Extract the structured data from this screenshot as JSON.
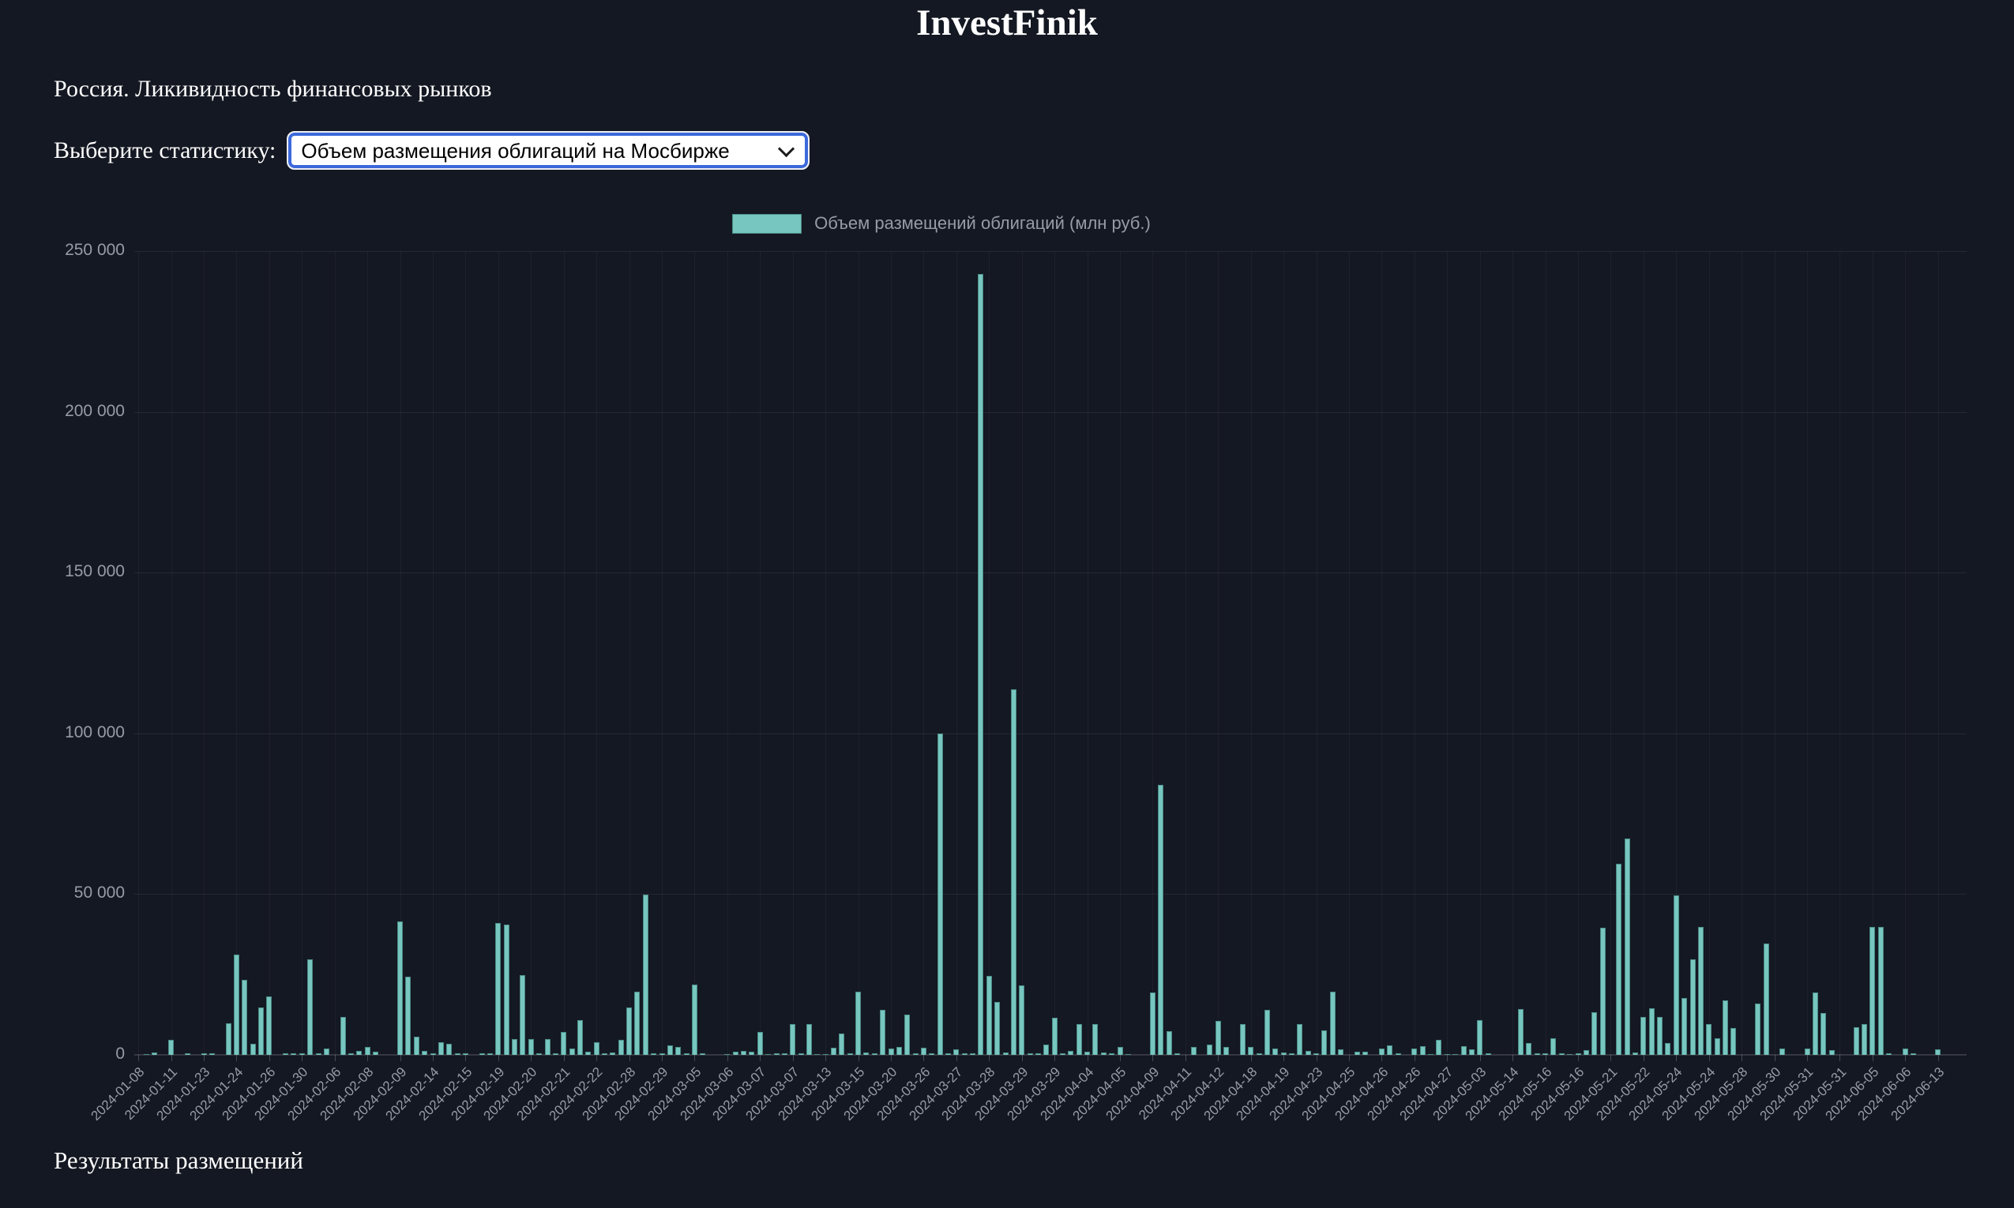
{
  "page": {
    "title": "InvestFinik",
    "subtitle": "Россия. Ликивидность финансовых рынков",
    "select_label": "Выберите статистику:",
    "select_value": "Объем размещения облигаций на Мосбирже",
    "footer_heading": "Результаты размещений"
  },
  "colors": {
    "background": "#141822",
    "bar_fill": "#77c6c0",
    "bar_border": "#4a8a85",
    "select_focus_blue": "#3c69da",
    "muted_text": "#969ca6",
    "white_text": "#ffffff"
  },
  "chart_data": {
    "type": "bar",
    "title": "",
    "legend": [
      {
        "label": "Объем размещений облигаций (млн руб.)",
        "color": "#77c6c0"
      }
    ],
    "legend_position": "top",
    "grid": true,
    "ylabel": "",
    "xlabel": "",
    "ylim": [
      0,
      250000
    ],
    "y_ticks": [
      "0",
      "50 000",
      "100 000",
      "150 000",
      "200 000",
      "250 000"
    ],
    "x_label_every": 4,
    "x_labels": [
      "2024-01-08",
      "2024-01-11",
      "2024-01-23",
      "2024-01-24",
      "2024-01-26",
      "2024-01-30",
      "2024-02-06",
      "2024-02-08",
      "2024-02-09",
      "2024-02-14",
      "2024-02-15",
      "2024-02-19",
      "2024-02-20",
      "2024-02-21",
      "2024-02-22",
      "2024-02-28",
      "2024-02-29",
      "2024-03-05",
      "2024-03-06",
      "2024-03-07",
      "2024-03-07",
      "2024-03-13",
      "2024-03-15",
      "2024-03-20",
      "2024-03-26",
      "2024-03-27",
      "2024-03-28",
      "2024-03-29",
      "2024-03-29",
      "2024-04-04",
      "2024-04-05",
      "2024-04-09",
      "2024-04-11",
      "2024-04-12",
      "2024-04-18",
      "2024-04-19",
      "2024-04-23",
      "2024-04-25",
      "2024-04-26",
      "2024-04-26",
      "2024-04-27",
      "2024-05-03",
      "2024-05-14",
      "2024-05-16",
      "2024-05-16",
      "2024-05-21",
      "2024-05-22",
      "2024-05-24",
      "2024-05-24",
      "2024-05-28",
      "2024-05-30",
      "2024-05-31",
      "2024-05-31",
      "2024-06-05",
      "2024-06-06",
      "2024-06-13"
    ],
    "values": [
      0,
      300,
      800,
      0,
      4700,
      0,
      400,
      0,
      400,
      400,
      0,
      9800,
      31200,
      23300,
      3400,
      14700,
      18200,
      0,
      400,
      400,
      400,
      29600,
      500,
      2000,
      0,
      11900,
      400,
      1200,
      2400,
      900,
      0,
      0,
      41600,
      24200,
      5700,
      1300,
      400,
      4000,
      3500,
      400,
      400,
      0,
      400,
      400,
      41000,
      40500,
      4900,
      24800,
      4900,
      400,
      4900,
      400,
      7100,
      2000,
      10800,
      1000,
      3900,
      500,
      800,
      4700,
      14700,
      19700,
      49800,
      500,
      500,
      2900,
      2500,
      500,
      21900,
      400,
      0,
      0,
      300,
      1000,
      1200,
      1000,
      7200,
      300,
      500,
      500,
      9600,
      400,
      9600,
      300,
      300,
      2100,
      6700,
      400,
      19600,
      800,
      400,
      14000,
      2000,
      2500,
      12500,
      400,
      2200,
      400,
      100000,
      400,
      1700,
      400,
      500,
      243000,
      24600,
      16500,
      700,
      113600,
      21700,
      400,
      400,
      3100,
      11500,
      400,
      1200,
      9500,
      900,
      9500,
      700,
      400,
      2500,
      300,
      0,
      0,
      19500,
      84000,
      7400,
      400,
      0,
      2500,
      0,
      3100,
      10600,
      2500,
      0,
      9500,
      2500,
      400,
      14000,
      2000,
      700,
      400,
      9600,
      1200,
      400,
      7500,
      19700,
      1800,
      0,
      900,
      900,
      0,
      2000,
      2900,
      400,
      0,
      2000,
      2700,
      300,
      4700,
      300,
      300,
      2700,
      1700,
      10700,
      500,
      0,
      0,
      0,
      14200,
      3700,
      400,
      400,
      5200,
      400,
      300,
      400,
      1500,
      13200,
      39600,
      0,
      59400,
      67200,
      700,
      11700,
      14600,
      11700,
      3700,
      49600,
      17800,
      29700,
      39700,
      9700,
      5200,
      17000,
      8300,
      0,
      0,
      16000,
      34600,
      0,
      1900,
      0,
      0,
      2000,
      19500,
      12900,
      1400,
      0,
      0,
      8600,
      9500,
      39700,
      39700,
      500,
      0,
      2000,
      400,
      0,
      0,
      1700,
      0,
      0,
      0
    ]
  }
}
